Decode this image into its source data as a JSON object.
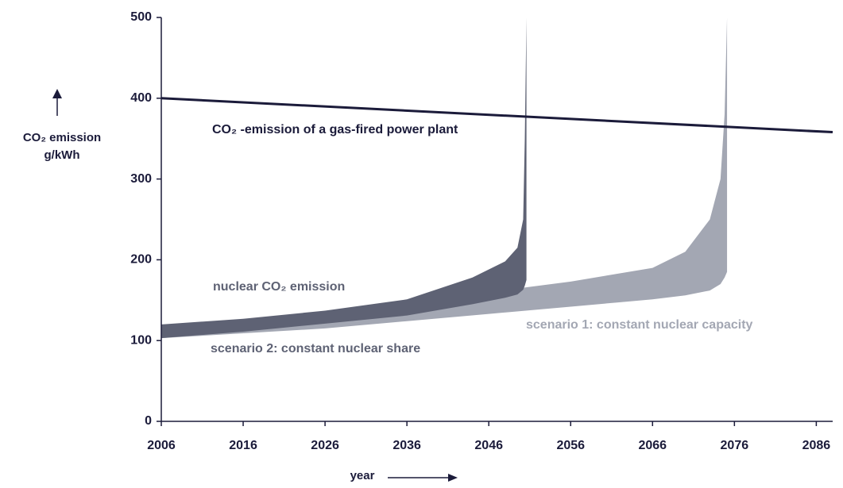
{
  "chart_data": {
    "type": "line",
    "y_label": [
      "CO₂ emission",
      "g/kWh"
    ],
    "x_label": "year",
    "annotation": "nuclear CO₂ emission",
    "xlim": [
      2006,
      2088
    ],
    "xticks": [
      2006,
      2016,
      2026,
      2036,
      2046,
      2056,
      2066,
      2076,
      2086
    ],
    "ylim": [
      0,
      500
    ],
    "yticks": [
      0,
      100,
      200,
      300,
      400,
      500
    ],
    "series": [
      {
        "name": "CO₂ -emission of a gas-fired power plant",
        "type": "line",
        "color": "#1b1b3a",
        "x": [
          2006,
          2088
        ],
        "values": [
          400,
          358
        ]
      },
      {
        "name": "scenario 1: constant nuclear capacity",
        "type": "band",
        "color": "#a3a7b3",
        "x": [
          2006,
          2026,
          2046,
          2056,
          2066,
          2070,
          2073,
          2074.3,
          2074.8,
          2075.1
        ],
        "upper": [
          104,
          124,
          160,
          173,
          190,
          210,
          250,
          300,
          380,
          500
        ],
        "lower": [
          103,
          115,
          133,
          142,
          151,
          156,
          162,
          170,
          178,
          185
        ]
      },
      {
        "name": "scenario 2: constant nuclear share",
        "type": "band",
        "color": "#5e6274",
        "x": [
          2006,
          2016,
          2026,
          2036,
          2044,
          2048,
          2049.5,
          2050.2,
          2050.4,
          2050.6
        ],
        "upper": [
          120,
          127,
          137,
          151,
          178,
          198,
          215,
          250,
          350,
          500
        ],
        "lower": [
          103,
          111,
          121,
          131,
          145,
          153,
          157,
          163,
          168,
          175
        ]
      }
    ]
  }
}
